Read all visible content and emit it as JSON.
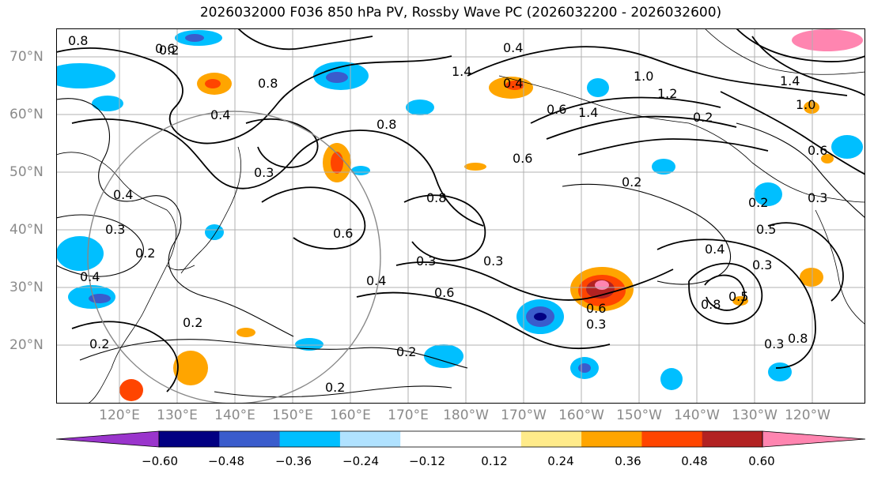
{
  "title": "2026032000 F036 850 hPa PV, Rossby Wave PC (2026032200 - 2026032600)",
  "lat_labels": [
    "70°N",
    "60°N",
    "50°N",
    "40°N",
    "30°N",
    "20°N"
  ],
  "lon_labels": [
    "120°E",
    "130°E",
    "140°E",
    "150°E",
    "160°E",
    "170°E",
    "180°W",
    "170°W",
    "160°W",
    "150°W",
    "140°W",
    "130°W",
    "120°W"
  ],
  "contour_labels": [
    "0.8",
    "0.6",
    "0.4",
    "0.8",
    "0.4",
    "0.3",
    "0.4",
    "0.3",
    "0.2",
    "0.4",
    "0.2",
    "0.2",
    "0.2",
    "0.6",
    "0.8",
    "0.8",
    "0.6",
    "0.3",
    "0.4",
    "0.6",
    "0.3",
    "0.4",
    "1.4",
    "0.6",
    "1.0",
    "1.2",
    "1.4",
    "0.2",
    "1.4",
    "1.0",
    "0.2",
    "0.6",
    "0.2",
    "0.6",
    "0.3",
    "0.2",
    "0.3",
    "0.5",
    "0.4",
    "0.8",
    "0.5",
    "0.3",
    "0.3",
    "0.8",
    "0.2"
  ],
  "colorbar": {
    "colors": [
      "#9a35cc",
      "#020082",
      "#3a5ccc",
      "#00bfff",
      "#b0e2ff",
      "#ffffff",
      "#ffffff",
      "#ffeb8a",
      "#ffa500",
      "#ff4500",
      "#b22222",
      "#ff85b0"
    ],
    "labels": [
      "−0.60",
      "−0.48",
      "−0.36",
      "−0.24",
      "−0.12",
      "0.12",
      "0.24",
      "0.36",
      "0.48",
      "0.60"
    ]
  }
}
